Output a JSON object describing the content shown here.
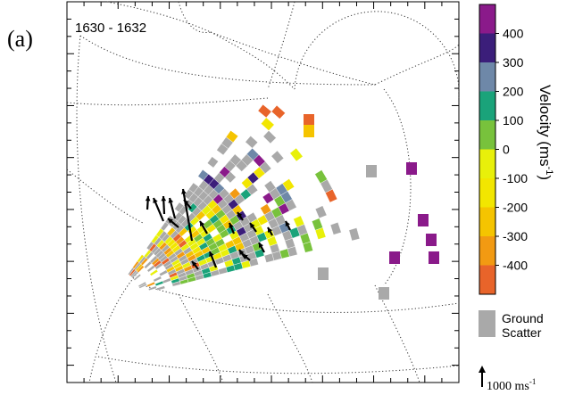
{
  "panel_label": "(a)",
  "time_label": "1630 - 1632",
  "chart_data": {
    "type": "heatmap",
    "description_kind": "radar line-of-sight velocity fan map",
    "colorbar": {
      "title": "Velocity (ms",
      "title_sup": "-1",
      "title_end": ")",
      "min": -500,
      "max": 500,
      "ticks": [
        400,
        300,
        200,
        100,
        0,
        -100,
        -200,
        -300,
        -400
      ],
      "colors": [
        {
          "from": 400,
          "to": 500,
          "color": "#8a1a8a"
        },
        {
          "from": 300,
          "to": 400,
          "color": "#3b1e7a"
        },
        {
          "from": 200,
          "to": 300,
          "color": "#6e88a8"
        },
        {
          "from": 100,
          "to": 200,
          "color": "#1aa37a"
        },
        {
          "from": 0,
          "to": 100,
          "color": "#78c23c"
        },
        {
          "from": -100,
          "to": 0,
          "color": "#e8f00a"
        },
        {
          "from": -200,
          "to": -100,
          "color": "#f2e600"
        },
        {
          "from": -300,
          "to": -200,
          "color": "#f5c400"
        },
        {
          "from": -400,
          "to": -300,
          "color": "#f29a12"
        },
        {
          "from": -500,
          "to": -400,
          "color": "#e8642a"
        }
      ]
    },
    "ground_scatter": {
      "label_line1": "Ground",
      "label_line2": "Scatter",
      "color": "#a9a9a9"
    },
    "vector_scale": {
      "label": "1000 ms",
      "sup": "-1"
    }
  }
}
